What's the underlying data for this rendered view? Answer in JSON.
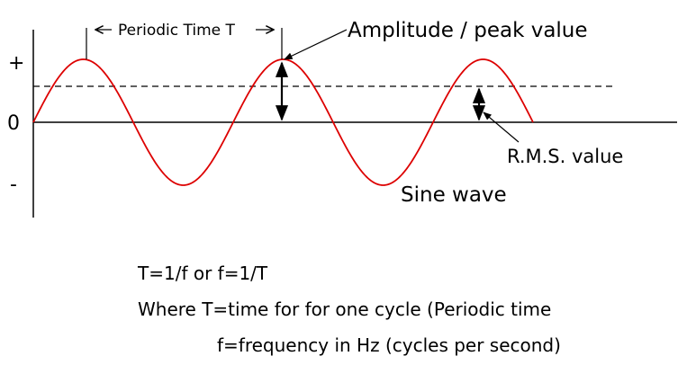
{
  "diagram": {
    "axis_labels": {
      "plus": "+",
      "zero": "0",
      "minus": "-"
    },
    "labels": {
      "periodic_time": "Periodic Time T",
      "amplitude": "Amplitude / peak value",
      "rms": "R.M.S. value",
      "sine_wave": "Sine wave"
    },
    "wave": {
      "cycles": 2.5,
      "color": "#dd0000"
    },
    "notes": [
      "T=1/f or f=1/T",
      "Where T=time for for one cycle (Periodic time",
      "f=frequency in Hz (cycles per second)"
    ]
  }
}
